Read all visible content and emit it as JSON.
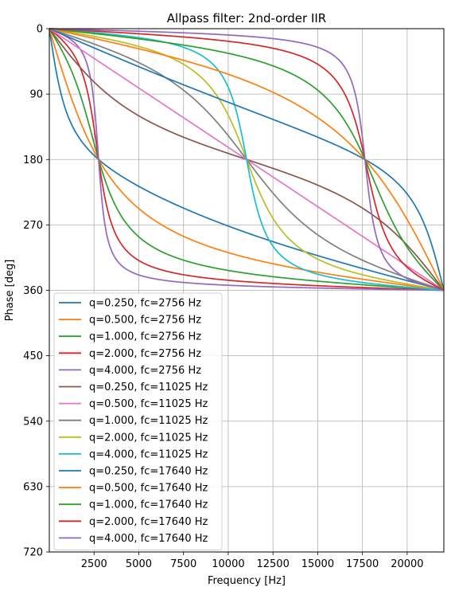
{
  "chart_data": {
    "type": "line",
    "title": "Allpass filter: 2nd-order IIR",
    "xlabel": "Frequency [Hz]",
    "ylabel": "Phase [deg]",
    "xlim": [
      0,
      22050
    ],
    "ylim": [
      720,
      0
    ],
    "y_inverted": true,
    "grid": true,
    "legend_position": "lower-left",
    "x_ticks": [
      2500,
      5000,
      7500,
      10000,
      12500,
      15000,
      17500,
      20000
    ],
    "y_ticks": [
      0,
      90,
      180,
      270,
      360,
      450,
      540,
      630,
      720
    ],
    "sample_rate": 44100,
    "series": [
      {
        "name": "q=0.250, fc=2756 Hz",
        "q": 0.25,
        "fc": 2756,
        "color": "#1f77b4"
      },
      {
        "name": "q=0.500, fc=2756 Hz",
        "q": 0.5,
        "fc": 2756,
        "color": "#ff7f0e"
      },
      {
        "name": "q=1.000, fc=2756 Hz",
        "q": 1.0,
        "fc": 2756,
        "color": "#2ca02c"
      },
      {
        "name": "q=2.000, fc=2756 Hz",
        "q": 2.0,
        "fc": 2756,
        "color": "#d62728"
      },
      {
        "name": "q=4.000, fc=2756 Hz",
        "q": 4.0,
        "fc": 2756,
        "color": "#9467bd"
      },
      {
        "name": "q=0.250, fc=11025 Hz",
        "q": 0.25,
        "fc": 11025,
        "color": "#8c564b"
      },
      {
        "name": "q=0.500, fc=11025 Hz",
        "q": 0.5,
        "fc": 11025,
        "color": "#e377c2"
      },
      {
        "name": "q=1.000, fc=11025 Hz",
        "q": 1.0,
        "fc": 11025,
        "color": "#7f7f7f"
      },
      {
        "name": "q=2.000, fc=11025 Hz",
        "q": 2.0,
        "fc": 11025,
        "color": "#bcbd22"
      },
      {
        "name": "q=4.000, fc=11025 Hz",
        "q": 4.0,
        "fc": 11025,
        "color": "#17becf"
      },
      {
        "name": "q=0.250, fc=17640 Hz",
        "q": 0.25,
        "fc": 17640,
        "color": "#1f77b4"
      },
      {
        "name": "q=0.500, fc=17640 Hz",
        "q": 0.5,
        "fc": 17640,
        "color": "#ff7f0e"
      },
      {
        "name": "q=1.000, fc=17640 Hz",
        "q": 1.0,
        "fc": 17640,
        "color": "#2ca02c"
      },
      {
        "name": "q=2.000, fc=17640 Hz",
        "q": 2.0,
        "fc": 17640,
        "color": "#d62728"
      },
      {
        "name": "q=4.000, fc=17640 Hz",
        "q": 4.0,
        "fc": 17640,
        "color": "#9467bd"
      }
    ]
  }
}
